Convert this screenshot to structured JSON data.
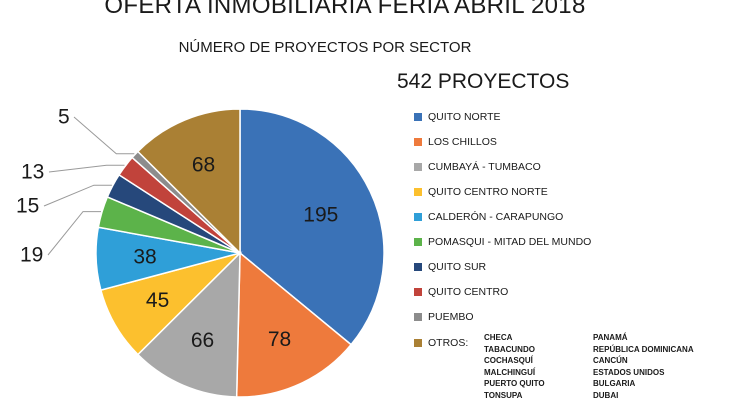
{
  "chart_data": {
    "type": "pie",
    "title": "OFERTA INMOBILIARIA FERIA ABRIL 2018",
    "subtitle": "NÚMERO DE PROYECTOS POR SECTOR",
    "total_label": "542 PROYECTOS",
    "legend_position": "right",
    "categories": [
      "QUITO NORTE",
      "LOS CHILLOS",
      "CUMBAYÁ - TUMBACO",
      "QUITO  CENTRO NORTE",
      "CALDERÓN - CARAPUNGO",
      "POMASQUI - MITAD DEL MUNDO",
      "QUITO SUR",
      "QUITO CENTRO",
      "PUEMBO",
      "OTROS:"
    ],
    "values": [
      195,
      78,
      66,
      45,
      38,
      19,
      15,
      13,
      5,
      68
    ],
    "data_labels": [
      "195",
      "78",
      "66",
      "45",
      "38",
      "19",
      "15",
      "13",
      "5",
      "68"
    ],
    "colors": [
      "#3a72b7",
      "#ee7a3c",
      "#a8a8a8",
      "#fcc02e",
      "#2f9fd8",
      "#5cb34a",
      "#26487b",
      "#c1433b",
      "#8c8c8c",
      "#aa8034"
    ],
    "others_list_col1": [
      "CHECA",
      "TABACUNDO",
      "COCHASQUÍ",
      "MALCHINGUÍ",
      "PUERTO QUITO",
      "TONSUPA"
    ],
    "others_list_col2": [
      "PANAMÁ",
      "REPÚBLICA DOMINICANA",
      "CANCÚN",
      "ESTADOS UNIDOS",
      "BULGARIA",
      "DUBAI"
    ]
  }
}
